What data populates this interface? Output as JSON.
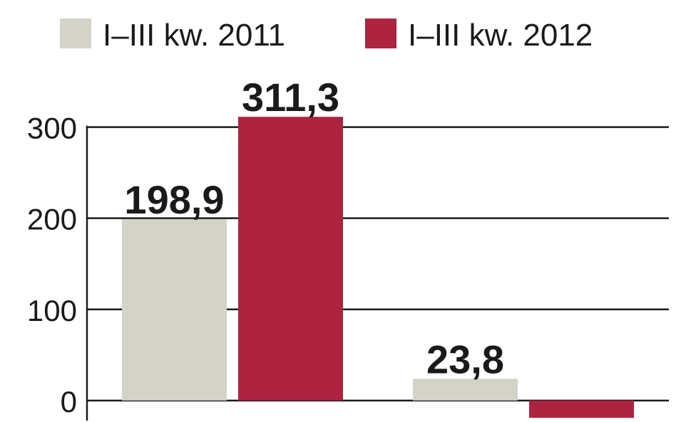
{
  "chart_data": {
    "type": "bar",
    "categories": [
      null,
      null
    ],
    "series": [
      {
        "name": "I–III kw. 2011",
        "color": "#d3d3c7",
        "values": [
          198.9,
          23.8
        ],
        "value_labels": [
          "198,9",
          "23,8"
        ]
      },
      {
        "name": "I–III kw. 2012",
        "color": "#ae2340",
        "values": [
          311.3,
          -19
        ],
        "value_labels": [
          "311,3",
          null
        ]
      }
    ],
    "ylim": [
      -22,
      320
    ],
    "yticks": [
      0,
      100,
      200,
      300
    ],
    "grid": true,
    "legend": "top"
  }
}
